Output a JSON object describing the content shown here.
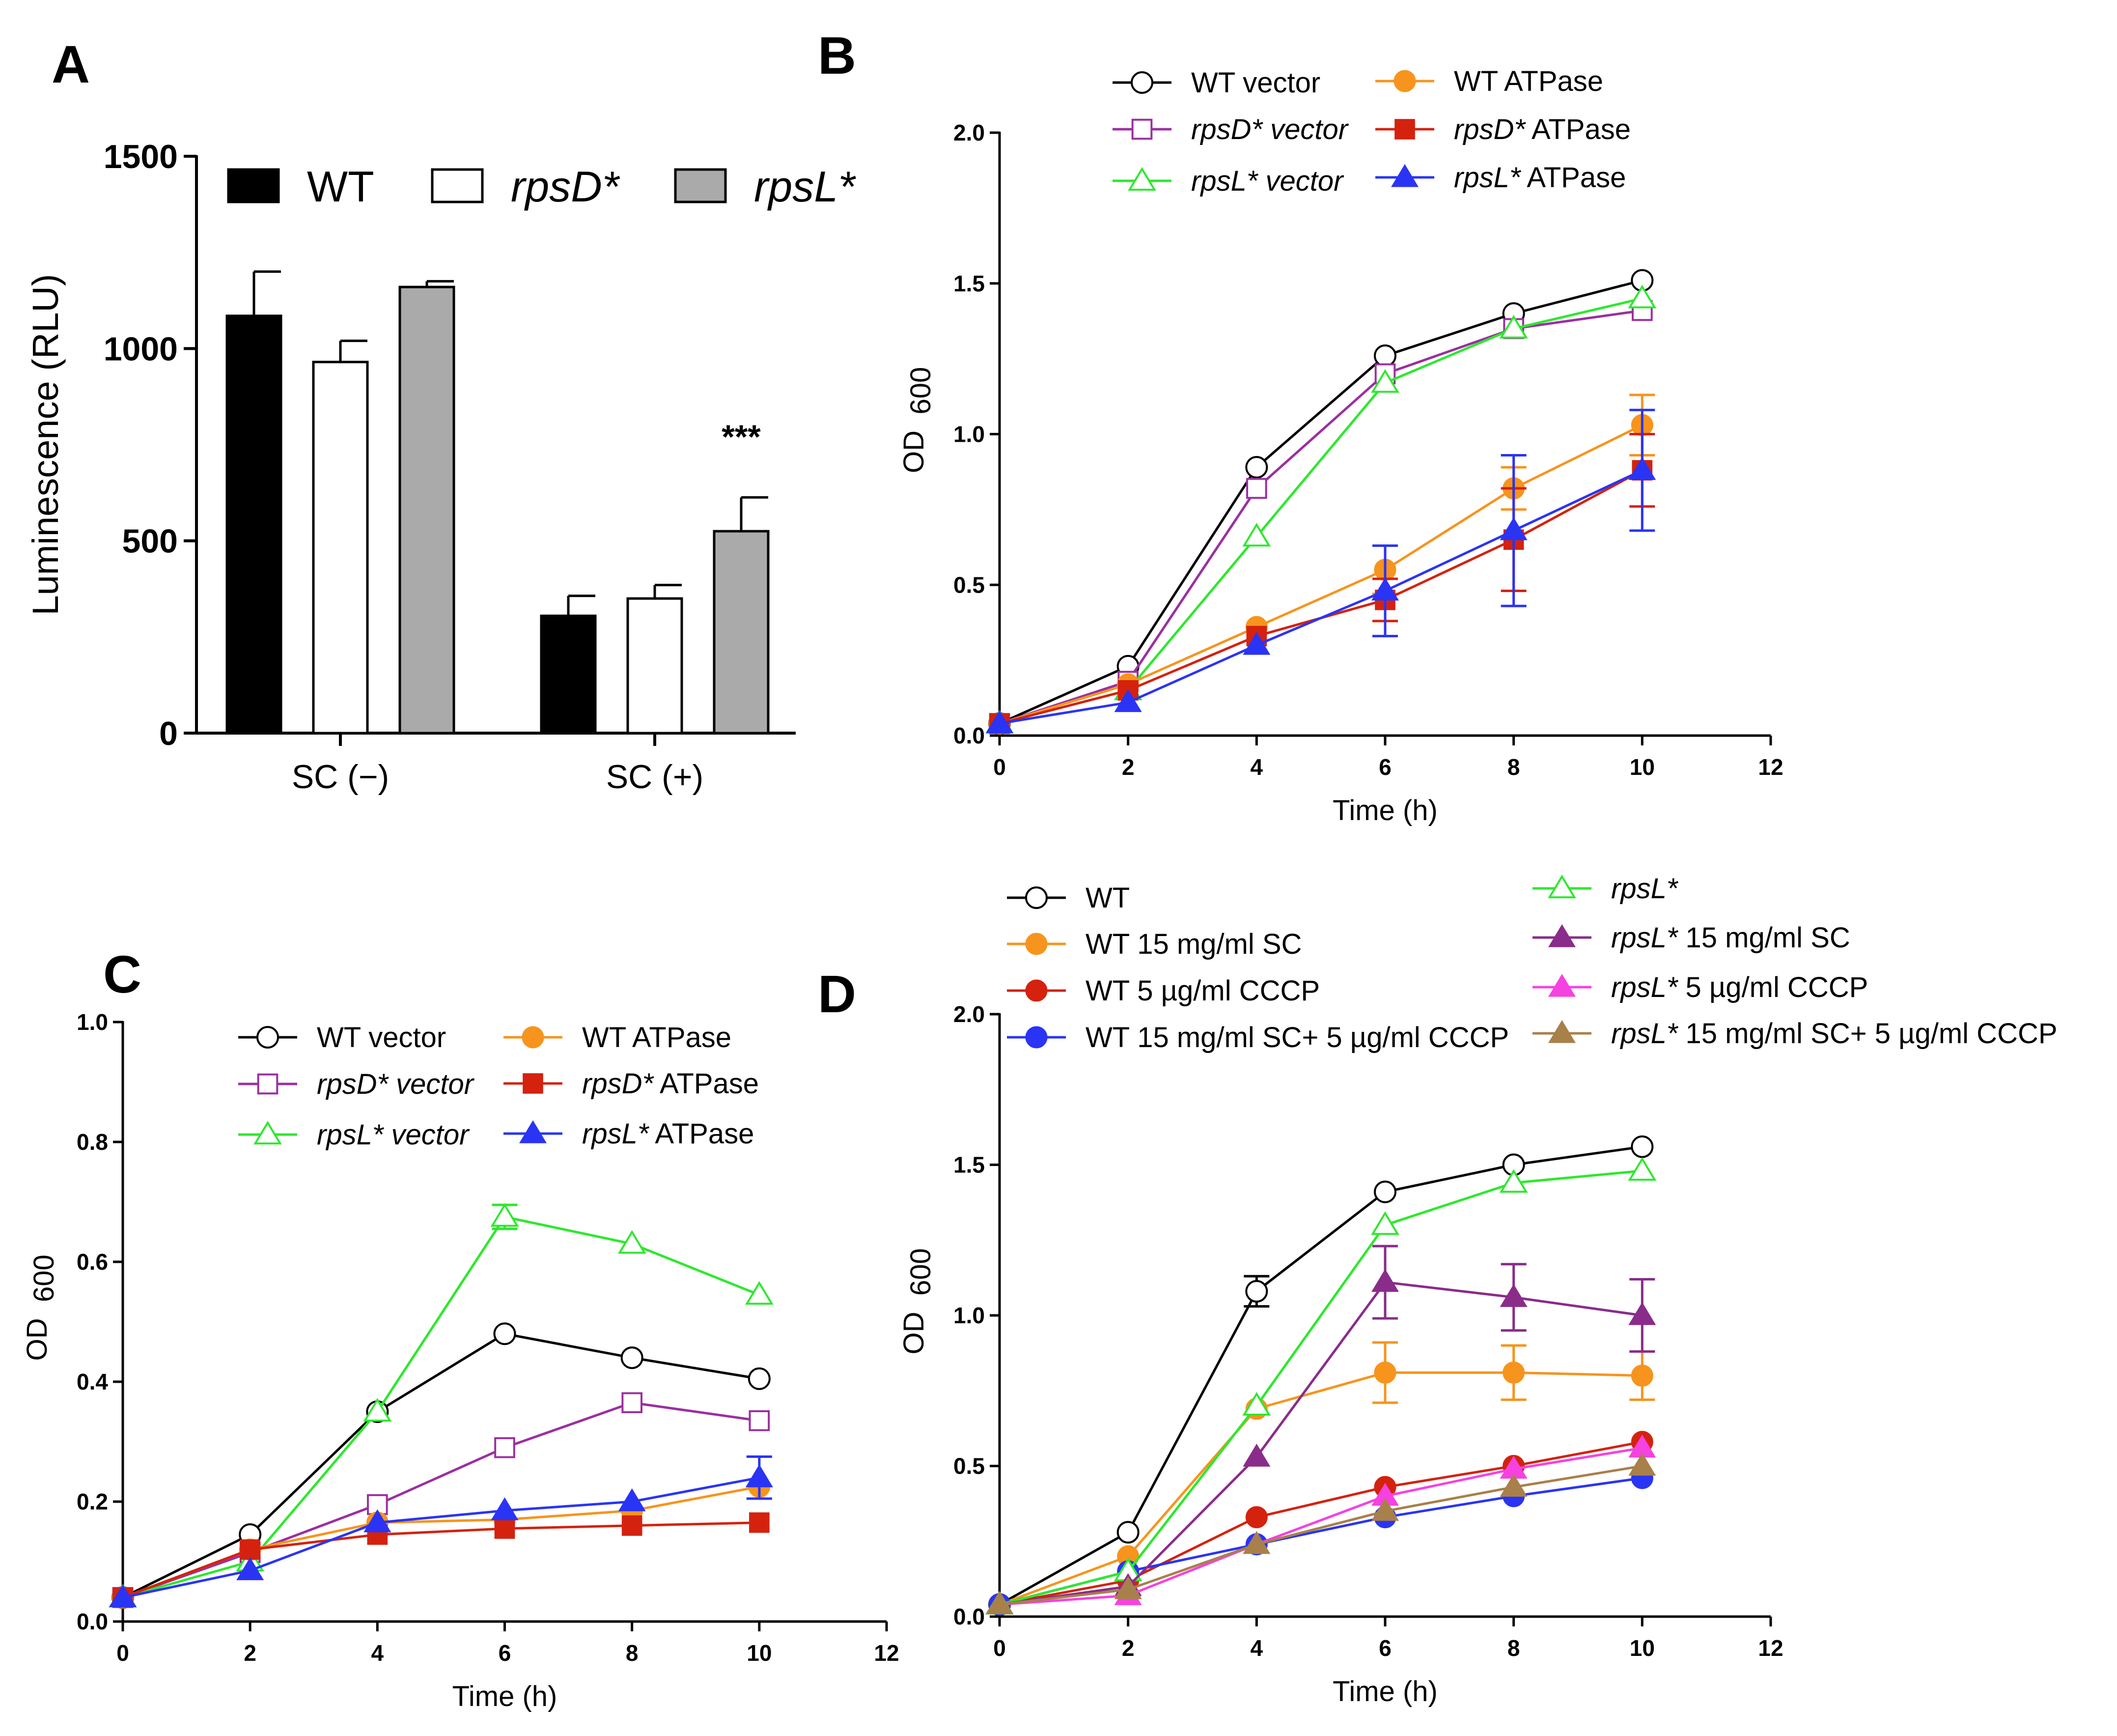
{
  "chart_data": [
    {
      "panel": "A",
      "type": "bar",
      "ylabel": "Luminescence (RLU)",
      "ylim": [
        0,
        1500
      ],
      "yticks": [
        "0",
        "500",
        "1000",
        "1500"
      ],
      "categories": [
        "SC (−)",
        "SC (+)"
      ],
      "series": [
        {
          "name_plain": "WT",
          "name_italic": "",
          "fill": "#000000",
          "values": [
            1085,
            305
          ],
          "errors": [
            115,
            52
          ]
        },
        {
          "name_plain": "",
          "name_italic": "rpsD*",
          "fill": "#ffffff",
          "values": [
            965,
            350
          ],
          "errors": [
            55,
            35
          ]
        },
        {
          "name_plain": "",
          "name_italic": "rpsL*",
          "fill": "#aaaaaa",
          "values": [
            1160,
            525
          ],
          "errors": [
            15,
            88
          ]
        }
      ],
      "annotation": "***"
    },
    {
      "panel": "B",
      "type": "line",
      "xlabel": "Time (h)",
      "ylabel_main": "OD",
      "ylabel_sub": "600",
      "xlim": [
        0,
        12
      ],
      "ylim": [
        0,
        2.0
      ],
      "xticks": [
        "0",
        "2",
        "4",
        "6",
        "8",
        "10",
        "12"
      ],
      "yticks": [
        "0.0",
        "0.5",
        "1.0",
        "1.5",
        "2.0"
      ],
      "x": [
        0,
        2,
        4,
        6,
        8,
        10
      ],
      "series": [
        {
          "italic": "",
          "plain": "WT  vector",
          "color": "#000000",
          "marker": "circle-open",
          "values": [
            0.04,
            0.23,
            0.89,
            1.26,
            1.4,
            1.51
          ],
          "errors": [
            0,
            0,
            0,
            0,
            0,
            0
          ]
        },
        {
          "italic": "rpsD* vector",
          "plain": "",
          "color": "#9b2fa0",
          "marker": "square-open",
          "values": [
            0.04,
            0.18,
            0.82,
            1.2,
            1.35,
            1.41
          ],
          "errors": [
            0,
            0,
            0,
            0,
            0,
            0
          ]
        },
        {
          "italic": "rpsL* vector",
          "plain": "",
          "color": "#2ee82e",
          "marker": "triangle-open",
          "values": [
            0.04,
            0.15,
            0.66,
            1.17,
            1.35,
            1.45
          ],
          "errors": [
            0,
            0,
            0,
            0,
            0,
            0
          ]
        },
        {
          "italic": "",
          "plain": "WT ATPase",
          "color": "#f7941d",
          "marker": "circle-filled",
          "values": [
            0.04,
            0.17,
            0.36,
            0.55,
            0.82,
            1.03
          ],
          "errors": [
            0,
            0,
            0,
            0.08,
            0.07,
            0.1
          ]
        },
        {
          "italic": "rpsD*",
          "plain": " ATPase",
          "color": "#d4220e",
          "marker": "square-filled",
          "values": [
            0.04,
            0.15,
            0.33,
            0.45,
            0.65,
            0.88
          ],
          "errors": [
            0,
            0,
            0,
            0.07,
            0.17,
            0.12
          ]
        },
        {
          "italic": "rpsL*",
          "plain": " ATPase",
          "color": "#2a34f5",
          "marker": "triangle-filled",
          "values": [
            0.04,
            0.11,
            0.3,
            0.48,
            0.68,
            0.88
          ],
          "errors": [
            0,
            0,
            0,
            0.15,
            0.25,
            0.2
          ]
        }
      ]
    },
    {
      "panel": "C",
      "type": "line",
      "xlabel": "Time (h)",
      "ylabel_main": "OD",
      "ylabel_sub": "600",
      "xlim": [
        0,
        12
      ],
      "ylim": [
        0,
        1.0
      ],
      "xticks": [
        "0",
        "2",
        "4",
        "6",
        "8",
        "10",
        "12"
      ],
      "yticks": [
        "0.0",
        "0.2",
        "0.4",
        "0.6",
        "0.8",
        "1.0"
      ],
      "x": [
        0,
        2,
        4,
        6,
        8,
        10
      ],
      "series": [
        {
          "italic": "",
          "plain": "WT  vector",
          "color": "#000000",
          "marker": "circle-open",
          "values": [
            0.04,
            0.145,
            0.35,
            0.48,
            0.44,
            0.405
          ],
          "errors": [
            0,
            0,
            0,
            0,
            0,
            0
          ]
        },
        {
          "italic": "rpsD* vector",
          "plain": "",
          "color": "#9b2fa0",
          "marker": "square-open",
          "values": [
            0.04,
            0.115,
            0.195,
            0.29,
            0.365,
            0.335
          ],
          "errors": [
            0,
            0,
            0,
            0,
            0,
            0
          ]
        },
        {
          "italic": "rpsL* vector",
          "plain": "",
          "color": "#2ee82e",
          "marker": "triangle-open",
          "values": [
            0.04,
            0.1,
            0.35,
            0.675,
            0.63,
            0.545
          ],
          "errors": [
            0,
            0,
            0,
            0.02,
            0,
            0
          ]
        },
        {
          "italic": "",
          "plain": "WT ATPase",
          "color": "#f7941d",
          "marker": "circle-filled",
          "values": [
            0.04,
            0.12,
            0.165,
            0.17,
            0.185,
            0.225
          ],
          "errors": [
            0,
            0,
            0,
            0,
            0,
            0
          ]
        },
        {
          "italic": "rpsD*",
          "plain": " ATPase",
          "color": "#d4220e",
          "marker": "square-filled",
          "values": [
            0.04,
            0.12,
            0.145,
            0.155,
            0.16,
            0.165
          ],
          "errors": [
            0,
            0,
            0,
            0,
            0,
            0
          ]
        },
        {
          "italic": "rpsL*",
          "plain": " ATPase",
          "color": "#2a34f5",
          "marker": "triangle-filled",
          "values": [
            0.04,
            0.085,
            0.165,
            0.185,
            0.2,
            0.24
          ],
          "errors": [
            0,
            0,
            0,
            0,
            0,
            0.035
          ]
        }
      ]
    },
    {
      "panel": "D",
      "type": "line",
      "xlabel": "Time (h)",
      "ylabel_main": "OD",
      "ylabel_sub": "600",
      "xlim": [
        0,
        12
      ],
      "ylim": [
        0,
        2.0
      ],
      "xticks": [
        "0",
        "2",
        "4",
        "6",
        "8",
        "10",
        "12"
      ],
      "yticks": [
        "0.0",
        "0.5",
        "1.0",
        "1.5",
        "2.0"
      ],
      "x": [
        0,
        2,
        4,
        6,
        8,
        10
      ],
      "series": [
        {
          "italic": "",
          "plain": "WT",
          "color": "#000000",
          "marker": "circle-open",
          "values": [
            0.04,
            0.28,
            1.08,
            1.41,
            1.5,
            1.56
          ],
          "errors": [
            0,
            0,
            0.05,
            0,
            0,
            0
          ]
        },
        {
          "italic": "",
          "plain": "WT 15 mg/ml SC",
          "color": "#f7941d",
          "marker": "circle-filled",
          "values": [
            0.04,
            0.2,
            0.69,
            0.81,
            0.81,
            0.8
          ],
          "errors": [
            0,
            0,
            0,
            0.1,
            0.09,
            0.08
          ]
        },
        {
          "italic": "",
          "plain": "WT 5 µg/ml CCCP",
          "color": "#d4220e",
          "marker": "circle-filled",
          "values": [
            0.04,
            0.12,
            0.33,
            0.43,
            0.5,
            0.58
          ],
          "errors": [
            0,
            0,
            0,
            0,
            0,
            0
          ]
        },
        {
          "italic": "",
          "plain": "WT 15 mg/ml SC+ 5 µg/ml CCCP",
          "color": "#2a34f5",
          "marker": "circle-filled",
          "values": [
            0.04,
            0.15,
            0.24,
            0.33,
            0.4,
            0.46
          ],
          "errors": [
            0,
            0,
            0,
            0,
            0,
            0
          ]
        },
        {
          "italic": "rpsL*",
          "plain": "",
          "color": "#2ee82e",
          "marker": "triangle-open",
          "values": [
            0.04,
            0.15,
            0.7,
            1.3,
            1.44,
            1.48
          ],
          "errors": [
            0,
            0,
            0,
            0,
            0,
            0
          ]
        },
        {
          "italic": "rpsL*",
          "plain": " 15 mg/ml SC",
          "color": "#8a2c8a",
          "marker": "triangle-filled",
          "values": [
            0.04,
            0.1,
            0.53,
            1.11,
            1.06,
            1.0
          ],
          "errors": [
            0,
            0,
            0,
            0.12,
            0.11,
            0.12
          ]
        },
        {
          "italic": "rpsL*",
          "plain": " 5 µg/ml CCCP",
          "color": "#f542e0",
          "marker": "triangle-filled",
          "values": [
            0.04,
            0.07,
            0.24,
            0.4,
            0.49,
            0.56
          ],
          "errors": [
            0,
            0,
            0,
            0,
            0,
            0
          ]
        },
        {
          "italic": "rpsL*",
          "plain": " 15 mg/ml SC+ 5 µg/ml CCCP",
          "color": "#a8804a",
          "marker": "triangle-filled",
          "values": [
            0.04,
            0.09,
            0.24,
            0.35,
            0.43,
            0.5
          ],
          "errors": [
            0,
            0,
            0,
            0,
            0,
            0
          ]
        }
      ]
    }
  ]
}
